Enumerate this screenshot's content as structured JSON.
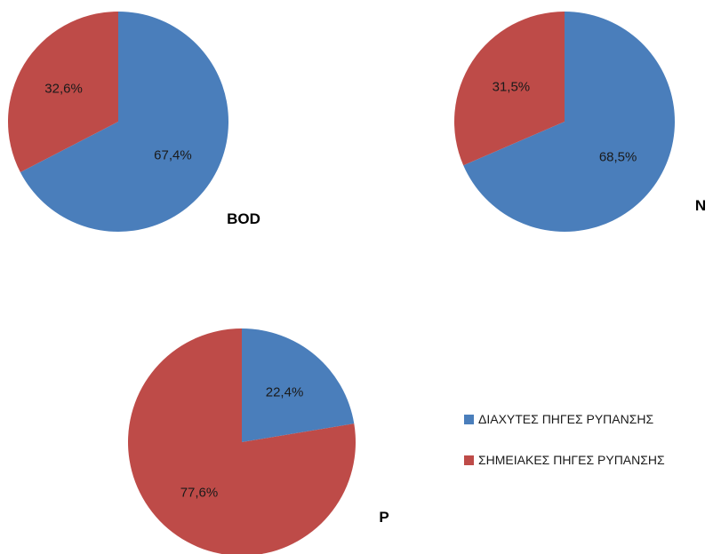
{
  "colors": {
    "diffuse": "#4a7ebb",
    "point": "#be4b48"
  },
  "chart_data": [
    {
      "type": "pie",
      "title": "BOD",
      "slices": [
        {
          "series": "diffuse",
          "value": 67.4,
          "label": "67,4%"
        },
        {
          "series": "point",
          "value": 32.6,
          "label": "32,6%"
        }
      ]
    },
    {
      "type": "pie",
      "title": "N",
      "slices": [
        {
          "series": "diffuse",
          "value": 68.5,
          "label": "68,5%"
        },
        {
          "series": "point",
          "value": 31.5,
          "label": "31,5%"
        }
      ]
    },
    {
      "type": "pie",
      "title": "P",
      "slices": [
        {
          "series": "diffuse",
          "value": 22.4,
          "label": "22,4%"
        },
        {
          "series": "point",
          "value": 77.6,
          "label": "77,6%"
        }
      ]
    }
  ],
  "legend": {
    "position": "bottom-right",
    "items": [
      {
        "series": "diffuse",
        "label": "ΔΙΑΧΥΤΕΣ ΠΗΓΕΣ ΡΥΠΑΝΣΗΣ"
      },
      {
        "series": "point",
        "label": "ΣΗΜΕΙΑΚΕΣ ΠΗΓΕΣ ΡΥΠΑΝΣΗΣ"
      }
    ]
  }
}
